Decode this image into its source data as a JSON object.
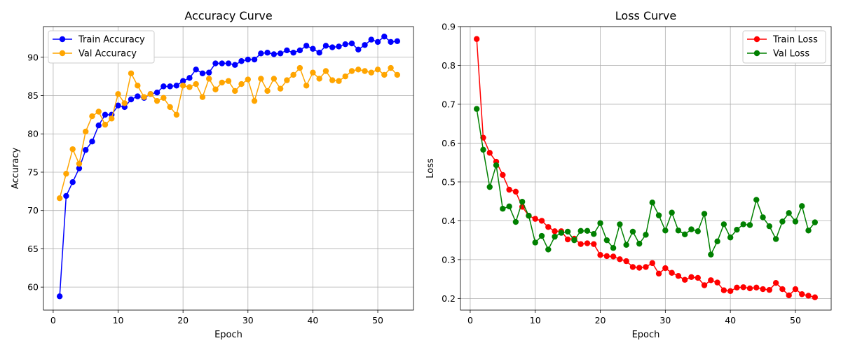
{
  "chart_data": [
    {
      "type": "line",
      "title": "Accuracy Curve",
      "xlabel": "Epoch",
      "ylabel": "Accuracy",
      "xlim": [
        -1.5,
        55.5
      ],
      "ylim": [
        57.0,
        94.0
      ],
      "xticks": [
        0,
        10,
        20,
        30,
        40,
        50
      ],
      "yticks": [
        60,
        65,
        70,
        75,
        80,
        85,
        90
      ],
      "grid": true,
      "legend_position": "top-left",
      "x": [
        1,
        2,
        3,
        4,
        5,
        6,
        7,
        8,
        9,
        10,
        11,
        12,
        13,
        14,
        15,
        16,
        17,
        18,
        19,
        20,
        21,
        22,
        23,
        24,
        25,
        26,
        27,
        28,
        29,
        30,
        31,
        32,
        33,
        34,
        35,
        36,
        37,
        38,
        39,
        40,
        41,
        42,
        43,
        44,
        45,
        46,
        47,
        48,
        49,
        50,
        51,
        52,
        53
      ],
      "series": [
        {
          "name": "Train Accuracy",
          "color": "#0000ff",
          "values": [
            58.8,
            71.9,
            73.7,
            75.5,
            77.9,
            79.0,
            81.1,
            82.5,
            82.5,
            83.7,
            83.5,
            84.5,
            84.9,
            84.7,
            85.2,
            85.4,
            86.2,
            86.2,
            86.3,
            86.9,
            87.3,
            88.4,
            87.9,
            88.0,
            89.2,
            89.2,
            89.2,
            89.0,
            89.5,
            89.7,
            89.7,
            90.5,
            90.6,
            90.4,
            90.5,
            90.9,
            90.6,
            90.9,
            91.5,
            91.1,
            90.6,
            91.5,
            91.3,
            91.4,
            91.7,
            91.8,
            91.0,
            91.6,
            92.3,
            92.0,
            92.7,
            92.0,
            92.1
          ]
        },
        {
          "name": "Val Accuracy",
          "color": "#ffa500",
          "values": [
            71.6,
            74.8,
            78.0,
            76.1,
            80.3,
            82.3,
            82.9,
            81.2,
            82.0,
            85.2,
            84.0,
            87.9,
            86.3,
            84.8,
            85.2,
            84.3,
            84.7,
            83.5,
            82.5,
            86.3,
            86.1,
            86.5,
            84.8,
            87.2,
            85.8,
            86.7,
            86.9,
            85.6,
            86.5,
            87.1,
            84.3,
            87.2,
            85.6,
            87.2,
            85.9,
            87.0,
            87.7,
            88.6,
            86.3,
            88.0,
            87.2,
            88.2,
            87.0,
            86.9,
            87.5,
            88.2,
            88.4,
            88.2,
            88.0,
            88.4,
            87.7,
            88.6,
            87.7
          ]
        }
      ]
    },
    {
      "type": "line",
      "title": "Loss Curve",
      "xlabel": "Epoch",
      "ylabel": "Loss",
      "xlim": [
        -1.5,
        55.5
      ],
      "ylim": [
        0.17,
        0.9
      ],
      "xticks": [
        0,
        10,
        20,
        30,
        40,
        50
      ],
      "yticks": [
        0.2,
        0.3,
        0.4,
        0.5,
        0.6,
        0.7,
        0.8,
        0.9
      ],
      "grid": true,
      "legend_position": "top-right",
      "x": [
        1,
        2,
        3,
        4,
        5,
        6,
        7,
        8,
        9,
        10,
        11,
        12,
        13,
        14,
        15,
        16,
        17,
        18,
        19,
        20,
        21,
        22,
        23,
        24,
        25,
        26,
        27,
        28,
        29,
        30,
        31,
        32,
        33,
        34,
        35,
        36,
        37,
        38,
        39,
        40,
        41,
        42,
        43,
        44,
        45,
        46,
        47,
        48,
        49,
        50,
        51,
        52,
        53
      ],
      "series": [
        {
          "name": "Train Loss",
          "color": "#ff0000",
          "values": [
            0.868,
            0.614,
            0.575,
            0.552,
            0.518,
            0.48,
            0.475,
            0.436,
            0.413,
            0.405,
            0.4,
            0.384,
            0.373,
            0.373,
            0.352,
            0.354,
            0.34,
            0.342,
            0.34,
            0.312,
            0.309,
            0.308,
            0.301,
            0.296,
            0.281,
            0.279,
            0.281,
            0.291,
            0.264,
            0.278,
            0.266,
            0.258,
            0.248,
            0.255,
            0.253,
            0.234,
            0.247,
            0.241,
            0.221,
            0.219,
            0.228,
            0.229,
            0.226,
            0.228,
            0.224,
            0.222,
            0.24,
            0.224,
            0.208,
            0.224,
            0.211,
            0.207,
            0.203
          ]
        },
        {
          "name": "Val Loss",
          "color": "#008000",
          "values": [
            0.688,
            0.583,
            0.487,
            0.543,
            0.431,
            0.437,
            0.397,
            0.449,
            0.413,
            0.344,
            0.361,
            0.326,
            0.359,
            0.369,
            0.372,
            0.35,
            0.374,
            0.374,
            0.366,
            0.394,
            0.35,
            0.33,
            0.391,
            0.338,
            0.372,
            0.341,
            0.364,
            0.447,
            0.414,
            0.375,
            0.421,
            0.375,
            0.365,
            0.378,
            0.373,
            0.418,
            0.313,
            0.347,
            0.391,
            0.357,
            0.377,
            0.391,
            0.389,
            0.454,
            0.409,
            0.386,
            0.353,
            0.398,
            0.42,
            0.398,
            0.438,
            0.375,
            0.396
          ]
        }
      ]
    }
  ]
}
